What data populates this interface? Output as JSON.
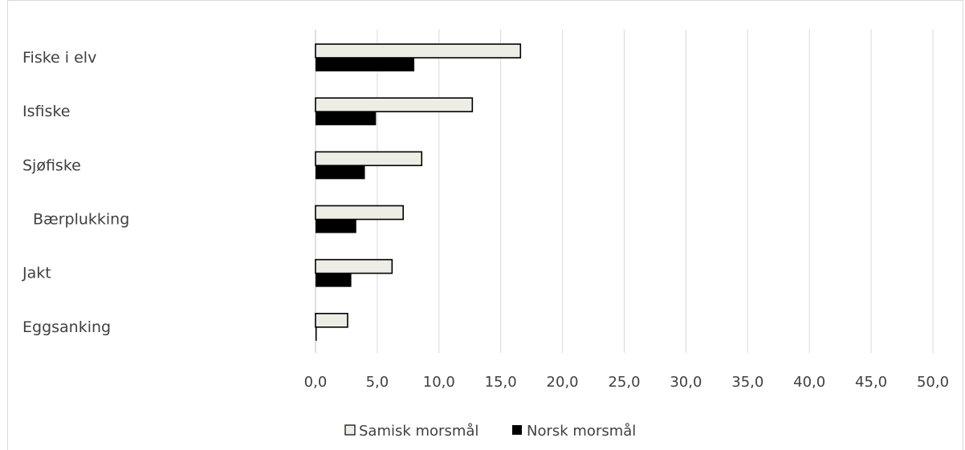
{
  "chart_data": {
    "type": "bar",
    "orientation": "horizontal",
    "categories": [
      "Fiske i elv",
      "Isfiske",
      "Sjøfiske",
      "Bærplukking",
      "Jakt",
      "Eggsanking"
    ],
    "series": [
      {
        "name": "Samisk morsmål",
        "values": [
          16.6,
          12.7,
          8.6,
          7.1,
          6.2,
          2.6
        ],
        "color": "#eeede5"
      },
      {
        "name": "Norsk morsmål",
        "values": [
          8.0,
          4.9,
          4.0,
          3.3,
          2.9,
          0.1
        ],
        "color": "#000000"
      }
    ],
    "xlim": [
      0,
      50
    ],
    "ticks": [
      "0,0",
      "5,0",
      "10,0",
      "15,0",
      "20,0",
      "25,0",
      "30,0",
      "35,0",
      "40,0",
      "45,0",
      "50,0"
    ],
    "tick_values": [
      0,
      5,
      10,
      15,
      20,
      25,
      30,
      35,
      40,
      45,
      50
    ],
    "grid": true,
    "legend_position": "bottom",
    "title": "",
    "xlabel": "",
    "ylabel": ""
  }
}
